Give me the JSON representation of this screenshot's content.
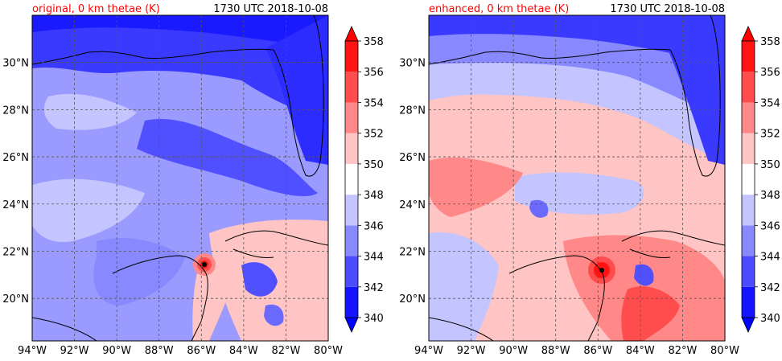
{
  "panels": [
    {
      "title_left": "original, 0 km thetae (K)",
      "title_right": "1730 UTC 2018-10-08",
      "storm_center": {
        "lon": -85.9,
        "lat": 21.4
      }
    },
    {
      "title_left": "enhanced, 0 km thetae (K)",
      "title_right": "1730 UTC 2018-10-08",
      "storm_center": {
        "lon": -85.8,
        "lat": 21.2
      }
    }
  ],
  "axes": {
    "lon_range": [
      -94,
      -80
    ],
    "lat_range": [
      18.2,
      32.0
    ],
    "lon_ticks": [
      "94°W",
      "92°W",
      "90°W",
      "88°W",
      "86°W",
      "84°W",
      "82°W",
      "80°W"
    ],
    "lon_values": [
      -94,
      -92,
      -90,
      -88,
      -86,
      -84,
      -82,
      -80
    ],
    "lat_ticks": [
      "20°N",
      "22°N",
      "24°N",
      "26°N",
      "28°N",
      "30°N"
    ],
    "lat_values": [
      20,
      22,
      24,
      26,
      28,
      30
    ],
    "grid": true
  },
  "colorbar": {
    "levels": [
      "340",
      "342",
      "344",
      "346",
      "348",
      "350",
      "352",
      "354",
      "356",
      "358"
    ],
    "colors": [
      "#1414ff",
      "#4c4cff",
      "#8888ff",
      "#c4c4ff",
      "#ffffff",
      "#ffc4c4",
      "#ff8888",
      "#ff4c4c",
      "#ff1414"
    ],
    "under_color": "#0000ff",
    "over_color": "#ff0000"
  },
  "title_color_left": "#ff0000",
  "title_color_right": "#000000"
}
